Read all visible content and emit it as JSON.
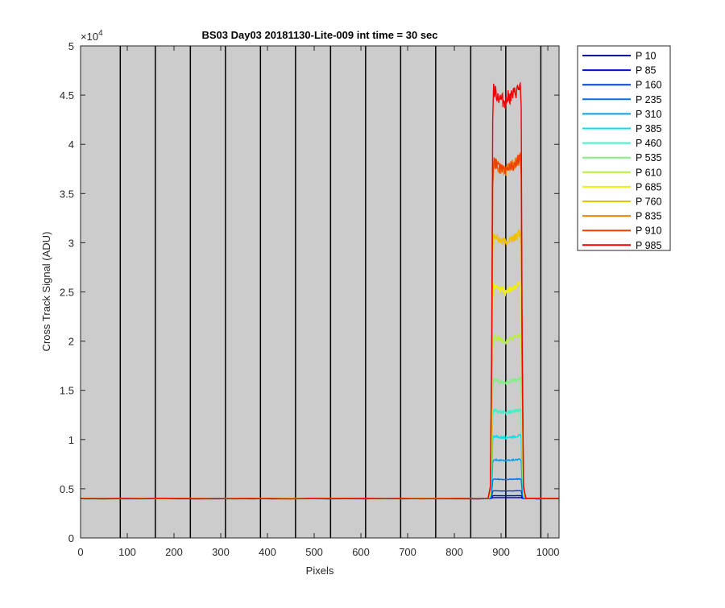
{
  "chart_data": {
    "type": "line",
    "title": "BS03 Day03 20181130-Lite-009 int time = 30 sec",
    "xlabel": "Pixels",
    "ylabel": "Cross Track Signal (ADU)",
    "xlim": [
      0,
      1024
    ],
    "ylim": [
      0,
      50000
    ],
    "x_ticks": [
      0,
      100,
      200,
      300,
      400,
      500,
      600,
      700,
      800,
      900,
      1000
    ],
    "x_tick_labels": [
      "0",
      "100",
      "200",
      "300",
      "400",
      "500",
      "600",
      "700",
      "800",
      "900",
      "1000"
    ],
    "y_ticks": [
      0,
      5000,
      10000,
      15000,
      20000,
      25000,
      30000,
      35000,
      40000,
      45000,
      50000
    ],
    "y_tick_labels": [
      "0",
      "0.5",
      "1",
      "1.5",
      "2",
      "2.5",
      "3",
      "3.5",
      "4",
      "4.5",
      "5"
    ],
    "y_exponent_label": "×10",
    "y_exponent_power": "4",
    "plot_background": "#cccccc",
    "legend_placement": "outside-right",
    "vertical_lines_x": [
      85,
      160,
      235,
      310,
      385,
      460,
      535,
      610,
      685,
      760,
      835,
      910,
      985
    ],
    "vertical_line_color": "#000000",
    "baseline": 4000,
    "signal_region": {
      "start": 880,
      "end": 945
    },
    "series": [
      {
        "name": "P 10",
        "color": "#0000aa",
        "plateau": 4100
      },
      {
        "name": "P 85",
        "color": "#0010d0",
        "plateau": 4300
      },
      {
        "name": "P 160",
        "color": "#0040e8",
        "plateau": 4800
      },
      {
        "name": "P 235",
        "color": "#0070f0",
        "plateau": 6000
      },
      {
        "name": "P 310",
        "color": "#00a0f0",
        "plateau": 8000
      },
      {
        "name": "P 385",
        "color": "#00e0f0",
        "plateau": 10400
      },
      {
        "name": "P 460",
        "color": "#40f0c8",
        "plateau": 13000
      },
      {
        "name": "P 535",
        "color": "#80f080",
        "plateau": 16200
      },
      {
        "name": "P 610",
        "color": "#b8f040",
        "plateau": 20600
      },
      {
        "name": "P 685",
        "color": "#f0f000",
        "plateau": 25800
      },
      {
        "name": "P 760",
        "color": "#f0c000",
        "plateau": 31000
      },
      {
        "name": "P 835",
        "color": "#f08000",
        "plateau": 38500
      },
      {
        "name": "P 910",
        "color": "#f04000",
        "plateau": 38500
      },
      {
        "name": "P 985",
        "color": "#f00000",
        "plateau": 45800
      }
    ]
  }
}
